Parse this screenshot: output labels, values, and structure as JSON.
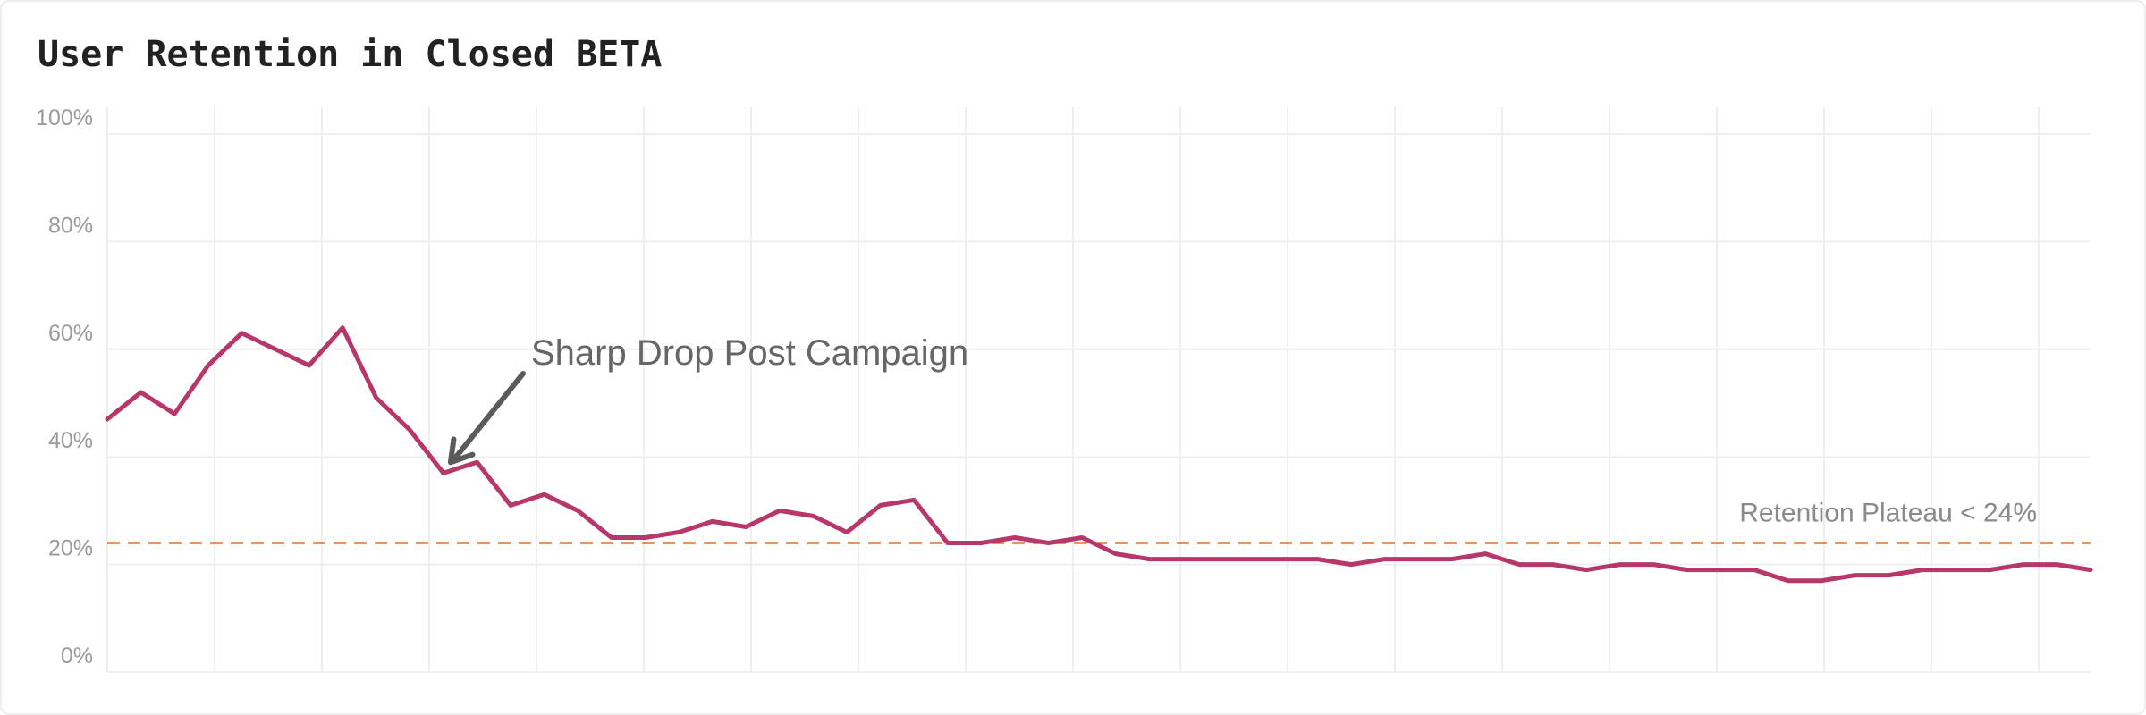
{
  "chart_data": {
    "type": "line",
    "title": "User Retention in Closed BETA",
    "xlabel": "",
    "ylabel": "",
    "ylim": [
      0,
      100
    ],
    "yticks": [
      "0%",
      "20%",
      "40%",
      "60%",
      "80%",
      "100%"
    ],
    "grid": true,
    "legend": "none",
    "series": [
      {
        "values": [
          47,
          52,
          48,
          57,
          63,
          60,
          57,
          64,
          51,
          45,
          37,
          39,
          31,
          33,
          30,
          25,
          25,
          26,
          28,
          27,
          30,
          29,
          26,
          31,
          32,
          24,
          24,
          25,
          24,
          25,
          22,
          21,
          21,
          21,
          21,
          21,
          21,
          20,
          21,
          21,
          21,
          22,
          20,
          20,
          19,
          20,
          20,
          19,
          19,
          19,
          17,
          17,
          18,
          18,
          19,
          19,
          19,
          20,
          20,
          19
        ]
      }
    ],
    "reference_line": {
      "y": 24,
      "label": "Retention Plateau < 24%",
      "color": "#e0702a",
      "style": "dashed"
    },
    "annotations": [
      {
        "text": "Sharp Drop Post Campaign",
        "point_index": 10
      }
    ],
    "colors": {
      "line": "#b7376a",
      "grid": "#efefef",
      "reference": "#e0702a"
    }
  }
}
